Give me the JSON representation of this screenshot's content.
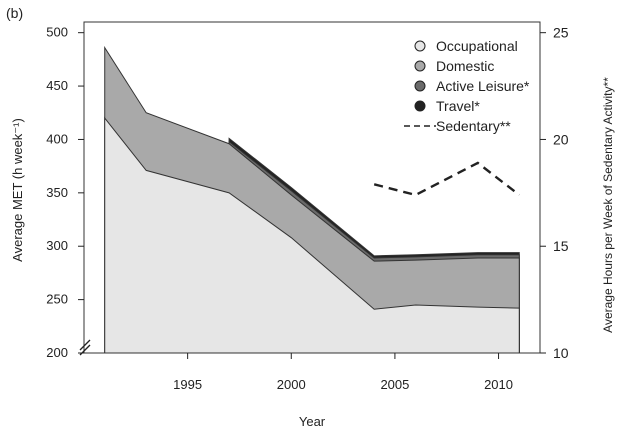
{
  "panel_label": "(b)",
  "chart_data": {
    "type": "area",
    "xlabel": "Year",
    "ylabel": "Average MET (h week⁻¹)",
    "y2label": "Average Hours per Week of Sedentary Activity**",
    "xlim": [
      1990,
      2012
    ],
    "ylim": [
      200,
      510
    ],
    "y2lim": [
      10,
      25.5
    ],
    "x_ticks": [
      "1995",
      "2000",
      "2005",
      "2010"
    ],
    "y_ticks": [
      "200",
      "250",
      "300",
      "350",
      "400",
      "450",
      "500"
    ],
    "y2_ticks": [
      "10",
      "15",
      "20",
      "25"
    ],
    "y_axis_break": true,
    "stacked": true,
    "series": [
      {
        "name": "Occupational",
        "color": "#e6e6e6",
        "x": [
          1991,
          1993,
          1997,
          2000,
          2004,
          2006,
          2009,
          2011
        ],
        "values": [
          420,
          371,
          350,
          308,
          241,
          245,
          243,
          242
        ]
      },
      {
        "name": "Domestic",
        "color": "#a9a9a9",
        "x": [
          1991,
          1993,
          1997,
          2000,
          2004,
          2006,
          2009,
          2011
        ],
        "values": [
          486,
          425,
          396,
          348,
          286,
          287,
          289,
          289
        ]
      },
      {
        "name": "Active Leisure*",
        "color": "#6a6a6a",
        "x": [
          1997,
          2000,
          2004,
          2006,
          2009,
          2011
        ],
        "values": [
          398,
          352,
          289,
          290,
          292,
          292
        ]
      },
      {
        "name": "Travel*",
        "color": "#222222",
        "x": [
          1997,
          2000,
          2004,
          2006,
          2009,
          2011
        ],
        "values": [
          401,
          355,
          291,
          292,
          294,
          294
        ]
      }
    ],
    "line_series": [
      {
        "name": "Sedentary**",
        "axis": "right",
        "style": "dashed",
        "x": [
          2004,
          2006,
          2009,
          2011
        ],
        "values": [
          17.9,
          17.4,
          18.9,
          17.4
        ]
      }
    ],
    "legend": {
      "position": "top-right",
      "entries": [
        "Occupational",
        "Domestic",
        "Active Leisure*",
        "Travel*",
        "Sedentary**"
      ]
    },
    "grid": false
  }
}
